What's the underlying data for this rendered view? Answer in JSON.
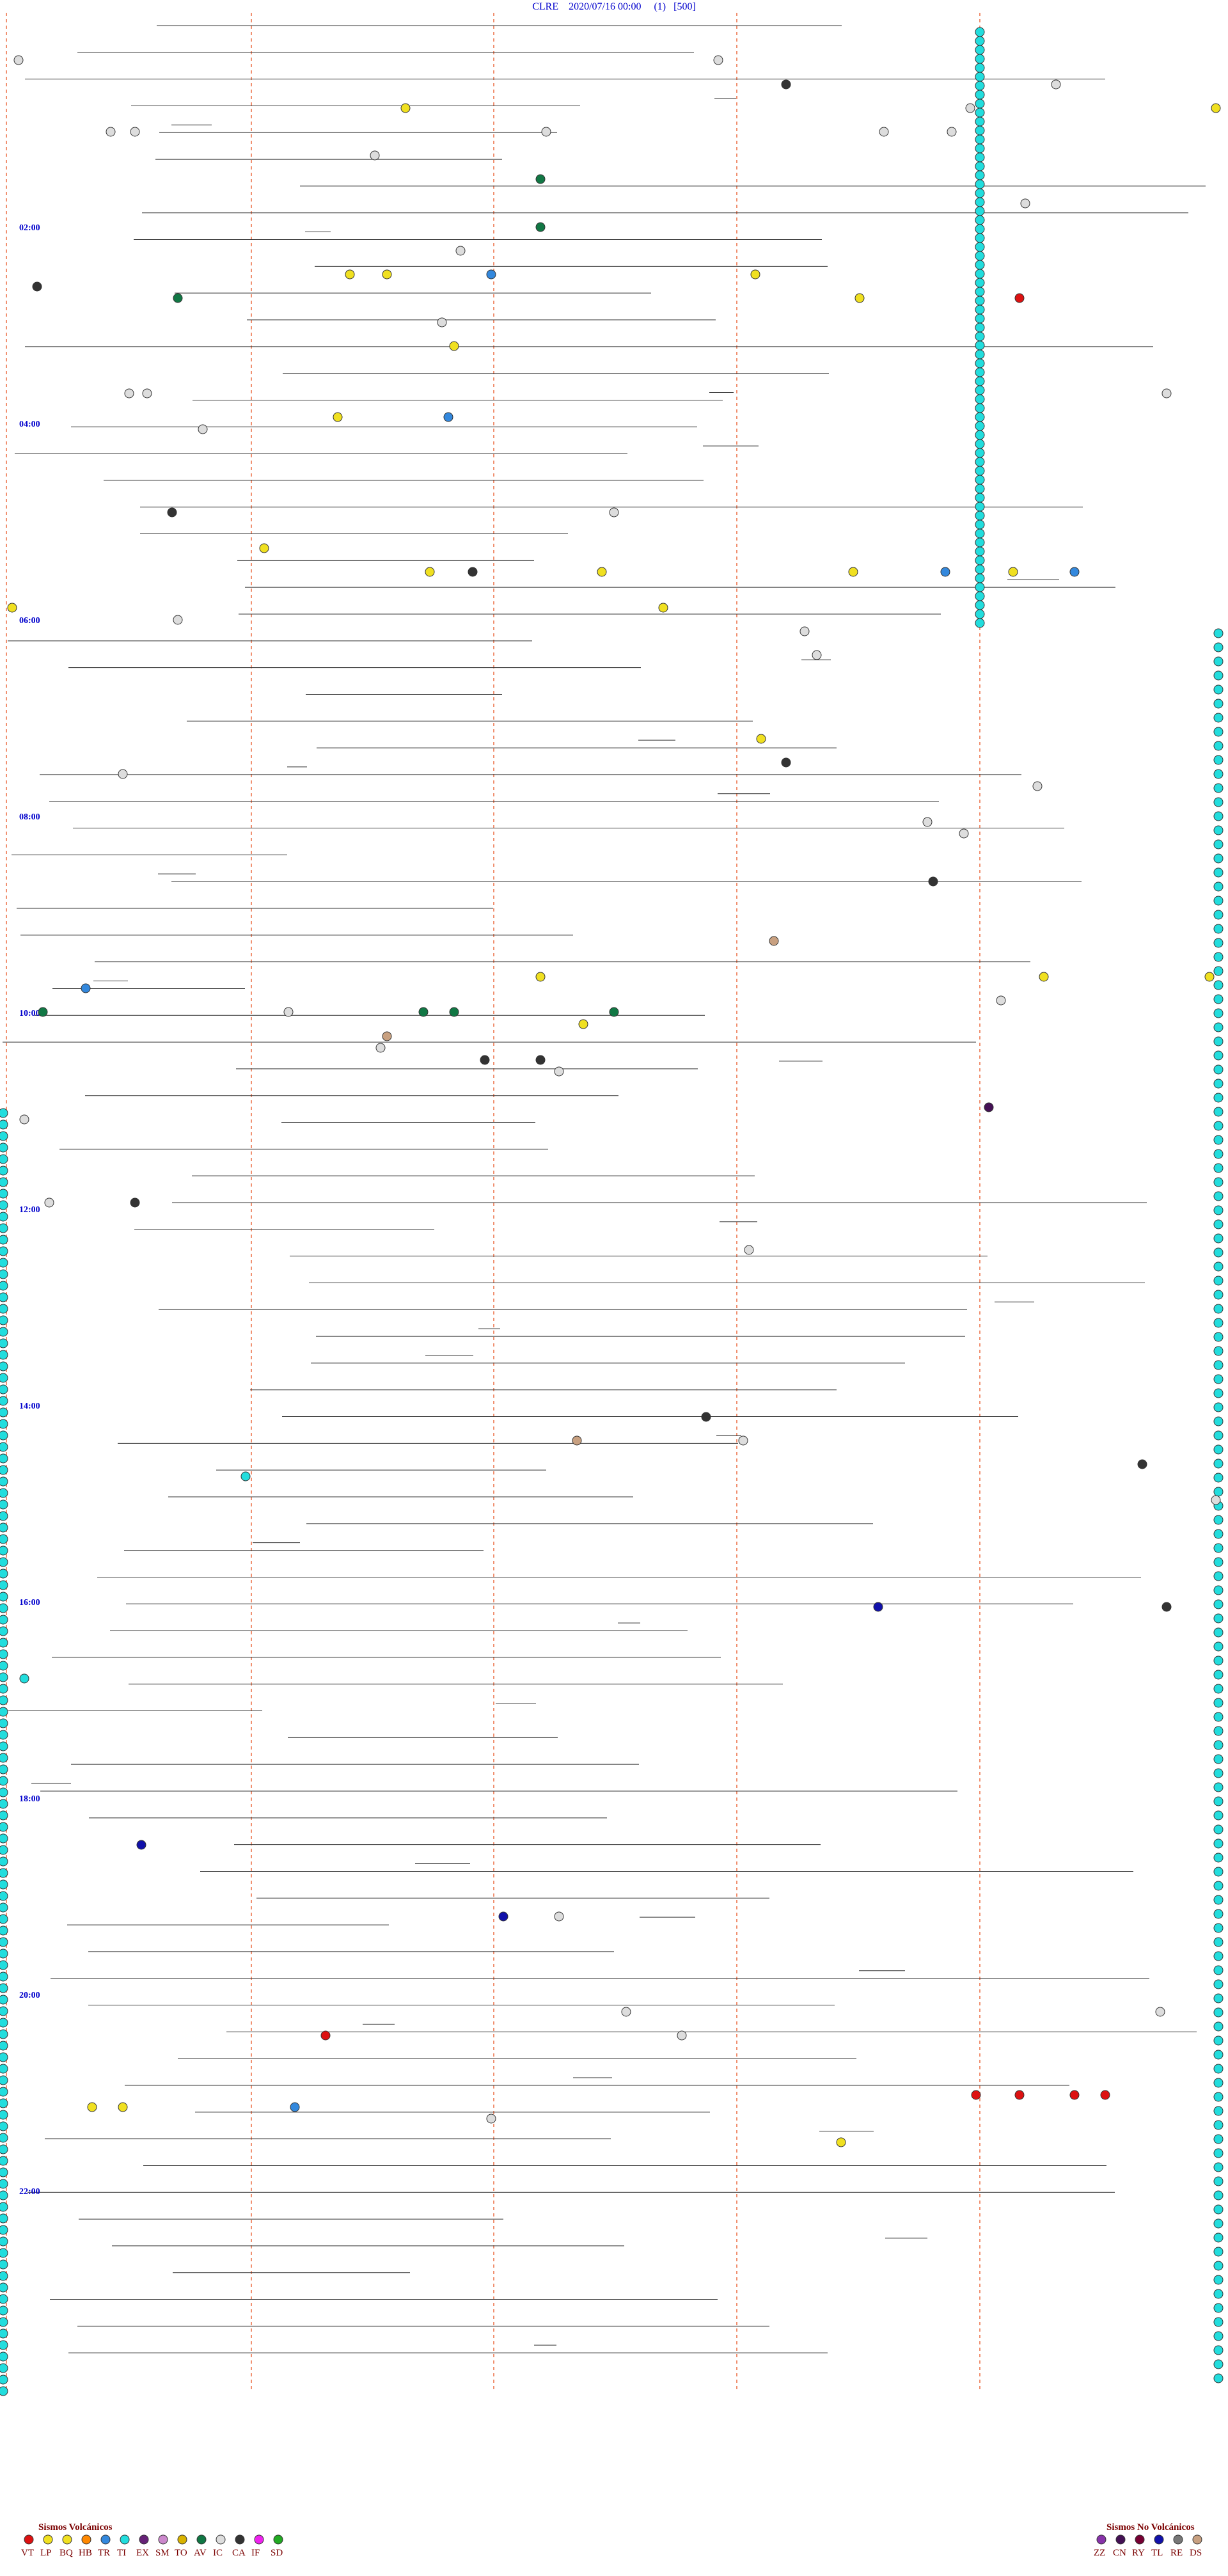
{
  "header": {
    "station": "CLRE",
    "datetime": "2020/07/16 00:00",
    "channel": "(1)",
    "scale": "[500]"
  },
  "chart_data": {
    "type": "scatter",
    "title": "CLRE 2020/07/16 00:00 (1) [500]",
    "hour_labels": [
      "02:00",
      "04:00",
      "06:00",
      "08:00",
      "10:00",
      "12:00",
      "14:00",
      "16:00",
      "18:00",
      "20:00",
      "22:00"
    ],
    "legend": {
      "volcanic_title": "Sismos Volcánicos",
      "volcanic": [
        {
          "code": "VT",
          "color": "#dd1111"
        },
        {
          "code": "LP",
          "color": "#f0e020"
        },
        {
          "code": "BQ",
          "color": "#f0e020"
        },
        {
          "code": "HB",
          "color": "#ff8800"
        },
        {
          "code": "TR",
          "color": "#3388dd"
        },
        {
          "code": "TI",
          "color": "#22dddd"
        },
        {
          "code": "EX",
          "color": "#662277"
        },
        {
          "code": "SM",
          "color": "#cc88cc"
        },
        {
          "code": "TO",
          "color": "#d9b300"
        },
        {
          "code": "AV",
          "color": "#117744"
        },
        {
          "code": "IC",
          "color": "#dddddd"
        },
        {
          "code": "CA",
          "color": "#333333"
        },
        {
          "code": "IF",
          "color": "#ee22ee"
        },
        {
          "code": "SD",
          "color": "#22aa22"
        }
      ],
      "nonvolcanic_title": "Sismos No Volcánicos",
      "nonvolcanic": [
        {
          "code": "ZZ",
          "color": "#8833aa"
        },
        {
          "code": "CN",
          "color": "#441155"
        },
        {
          "code": "RY",
          "color": "#770033"
        },
        {
          "code": "TL",
          "color": "#1111aa"
        },
        {
          "code": "RE",
          "color": "#777777"
        },
        {
          "code": "DS",
          "color": "#c8a080"
        }
      ]
    },
    "events": [
      {
        "t": 0.02,
        "x": 0.015,
        "type": "IC"
      },
      {
        "t": 0.05,
        "x": 0.09,
        "type": "IC"
      },
      {
        "t": 0.05,
        "x": 0.11,
        "type": "IC"
      },
      {
        "t": 0.06,
        "x": 0.305,
        "type": "IC"
      },
      {
        "t": 0.04,
        "x": 0.33,
        "type": "LP"
      },
      {
        "t": 0.03,
        "x": 0.64,
        "type": "CA"
      },
      {
        "t": 0.02,
        "x": 0.585,
        "type": "IC"
      },
      {
        "t": 0.05,
        "x": 0.445,
        "type": "IC"
      },
      {
        "t": 0.07,
        "x": 0.44,
        "type": "AV"
      },
      {
        "t": 0.09,
        "x": 0.44,
        "type": "AV"
      },
      {
        "t": 0.05,
        "x": 0.72,
        "type": "IC"
      },
      {
        "t": 0.04,
        "x": 0.79,
        "type": "IC"
      },
      {
        "t": 0.03,
        "x": 0.86,
        "type": "IC"
      },
      {
        "t": 0.04,
        "x": 0.99,
        "type": "LP"
      },
      {
        "t": 0.08,
        "x": 0.835,
        "type": "IC"
      },
      {
        "t": 0.05,
        "x": 0.775,
        "type": "IC"
      },
      {
        "t": 0.1,
        "x": 0.375,
        "type": "IC"
      },
      {
        "t": 0.11,
        "x": 0.4,
        "type": "TR"
      },
      {
        "t": 0.11,
        "x": 0.285,
        "type": "LP"
      },
      {
        "t": 0.11,
        "x": 0.315,
        "type": "LP"
      },
      {
        "t": 0.12,
        "x": 0.145,
        "type": "AV"
      },
      {
        "t": 0.11,
        "x": 0.615,
        "type": "LP"
      },
      {
        "t": 0.12,
        "x": 0.7,
        "type": "LP"
      },
      {
        "t": 0.12,
        "x": 0.83,
        "type": "VT"
      },
      {
        "t": 0.115,
        "x": 0.03,
        "type": "CA"
      },
      {
        "t": 0.13,
        "x": 0.36,
        "type": "IC"
      },
      {
        "t": 0.14,
        "x": 0.37,
        "type": "LP"
      },
      {
        "t": 0.16,
        "x": 0.105,
        "type": "IC"
      },
      {
        "t": 0.16,
        "x": 0.12,
        "type": "IC"
      },
      {
        "t": 0.16,
        "x": 0.95,
        "type": "IC"
      },
      {
        "t": 0.17,
        "x": 0.275,
        "type": "LP"
      },
      {
        "t": 0.17,
        "x": 0.365,
        "type": "TR"
      },
      {
        "t": 0.175,
        "x": 0.165,
        "type": "IC"
      },
      {
        "t": 0.21,
        "x": 0.14,
        "type": "CA"
      },
      {
        "t": 0.21,
        "x": 0.5,
        "type": "IC"
      },
      {
        "t": 0.225,
        "x": 0.215,
        "type": "LP"
      },
      {
        "t": 0.235,
        "x": 0.35,
        "type": "LP"
      },
      {
        "t": 0.235,
        "x": 0.385,
        "type": "CA"
      },
      {
        "t": 0.235,
        "x": 0.49,
        "type": "LP"
      },
      {
        "t": 0.235,
        "x": 0.695,
        "type": "LP"
      },
      {
        "t": 0.235,
        "x": 0.77,
        "type": "TR"
      },
      {
        "t": 0.235,
        "x": 0.825,
        "type": "LP"
      },
      {
        "t": 0.235,
        "x": 0.875,
        "type": "TR"
      },
      {
        "t": 0.25,
        "x": 0.01,
        "type": "LP"
      },
      {
        "t": 0.25,
        "x": 0.54,
        "type": "LP"
      },
      {
        "t": 0.255,
        "x": 0.145,
        "type": "IC"
      },
      {
        "t": 0.26,
        "x": 0.655,
        "type": "IC"
      },
      {
        "t": 0.27,
        "x": 0.665,
        "type": "IC"
      },
      {
        "t": 0.305,
        "x": 0.62,
        "type": "LP"
      },
      {
        "t": 0.315,
        "x": 0.64,
        "type": "CA"
      },
      {
        "t": 0.32,
        "x": 0.1,
        "type": "IC"
      },
      {
        "t": 0.325,
        "x": 0.845,
        "type": "IC"
      },
      {
        "t": 0.34,
        "x": 0.755,
        "type": "IC"
      },
      {
        "t": 0.345,
        "x": 0.785,
        "type": "IC"
      },
      {
        "t": 0.365,
        "x": 0.76,
        "type": "CA"
      },
      {
        "t": 0.39,
        "x": 0.63,
        "type": "DS"
      },
      {
        "t": 0.405,
        "x": 0.44,
        "type": "LP"
      },
      {
        "t": 0.405,
        "x": 0.85,
        "type": "LP"
      },
      {
        "t": 0.405,
        "x": 0.985,
        "type": "LP"
      },
      {
        "t": 0.41,
        "x": 0.07,
        "type": "TR"
      },
      {
        "t": 0.415,
        "x": 0.815,
        "type": "IC"
      },
      {
        "t": 0.42,
        "x": 0.035,
        "type": "AV"
      },
      {
        "t": 0.42,
        "x": 0.235,
        "type": "IC"
      },
      {
        "t": 0.42,
        "x": 0.345,
        "type": "AV"
      },
      {
        "t": 0.42,
        "x": 0.37,
        "type": "AV"
      },
      {
        "t": 0.42,
        "x": 0.5,
        "type": "AV"
      },
      {
        "t": 0.425,
        "x": 0.475,
        "type": "LP"
      },
      {
        "t": 0.43,
        "x": 0.315,
        "type": "DS"
      },
      {
        "t": 0.435,
        "x": 0.31,
        "type": "IC"
      },
      {
        "t": 0.44,
        "x": 0.395,
        "type": "CA"
      },
      {
        "t": 0.44,
        "x": 0.44,
        "type": "CA"
      },
      {
        "t": 0.445,
        "x": 0.455,
        "type": "IC"
      },
      {
        "t": 0.46,
        "x": 0.805,
        "type": "CN"
      },
      {
        "t": 0.465,
        "x": 0.02,
        "type": "IC"
      },
      {
        "t": 0.5,
        "x": 0.04,
        "type": "IC"
      },
      {
        "t": 0.5,
        "x": 0.11,
        "type": "CA"
      },
      {
        "t": 0.52,
        "x": 0.61,
        "type": "IC"
      },
      {
        "t": 0.59,
        "x": 0.575,
        "type": "CA"
      },
      {
        "t": 0.6,
        "x": 0.47,
        "type": "DS"
      },
      {
        "t": 0.6,
        "x": 0.605,
        "type": "IC"
      },
      {
        "t": 0.61,
        "x": 0.93,
        "type": "CA"
      },
      {
        "t": 0.615,
        "x": 0.2,
        "type": "TI"
      },
      {
        "t": 0.625,
        "x": 0.99,
        "type": "IC"
      },
      {
        "t": 0.67,
        "x": 0.715,
        "type": "TL"
      },
      {
        "t": 0.67,
        "x": 0.95,
        "type": "CA"
      },
      {
        "t": 0.7,
        "x": 0.02,
        "type": "TI"
      },
      {
        "t": 0.77,
        "x": 0.115,
        "type": "TL"
      },
      {
        "t": 0.8,
        "x": 0.41,
        "type": "TL"
      },
      {
        "t": 0.8,
        "x": 0.455,
        "type": "IC"
      },
      {
        "t": 0.84,
        "x": 0.51,
        "type": "IC"
      },
      {
        "t": 0.85,
        "x": 0.265,
        "type": "VT"
      },
      {
        "t": 0.85,
        "x": 0.555,
        "type": "IC"
      },
      {
        "t": 0.84,
        "x": 0.945,
        "type": "IC"
      },
      {
        "t": 0.88,
        "x": 0.075,
        "type": "LP"
      },
      {
        "t": 0.88,
        "x": 0.1,
        "type": "LP"
      },
      {
        "t": 0.88,
        "x": 0.24,
        "type": "TR"
      },
      {
        "t": 0.885,
        "x": 0.4,
        "type": "IC"
      },
      {
        "t": 0.875,
        "x": 0.795,
        "type": "VT"
      },
      {
        "t": 0.875,
        "x": 0.83,
        "type": "VT"
      },
      {
        "t": 0.875,
        "x": 0.875,
        "type": "VT"
      },
      {
        "t": 0.875,
        "x": 0.9,
        "type": "VT"
      },
      {
        "t": 0.895,
        "x": 0.685,
        "type": "LP"
      }
    ]
  }
}
